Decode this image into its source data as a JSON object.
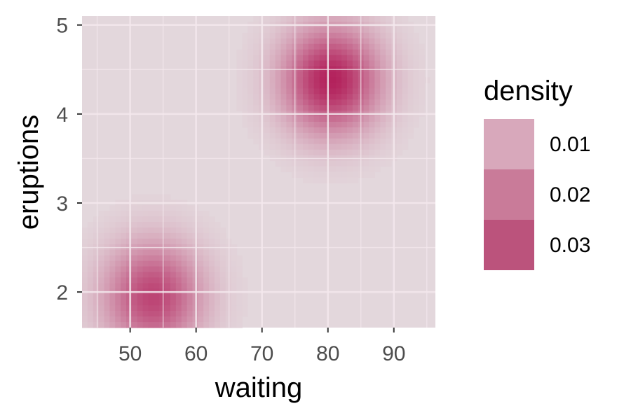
{
  "chart_data": {
    "type": "heatmap",
    "title": "",
    "xlabel": "waiting",
    "ylabel": "eruptions",
    "xlim": [
      42.7,
      96.3
    ],
    "ylim": [
      1.6,
      5.1
    ],
    "x_ticks": [
      50,
      60,
      70,
      80,
      90
    ],
    "y_ticks": [
      2,
      3,
      4,
      5
    ],
    "grid": true,
    "density_components": [
      {
        "x": 80.5,
        "y": 4.38,
        "peak": 0.037
      },
      {
        "x": 53.5,
        "y": 1.95,
        "peak": 0.03
      }
    ],
    "legend": {
      "title": "density",
      "position": "right",
      "entries": [
        {
          "label": "0.01",
          "color": "#d8a8bb"
        },
        {
          "label": "0.02",
          "color": "#c97b99"
        },
        {
          "label": "0.03",
          "color": "#bb537c"
        }
      ]
    },
    "colors": {
      "low": "#e3d7dc",
      "high": "#b3225c",
      "grid": "#f4e8ed"
    }
  }
}
